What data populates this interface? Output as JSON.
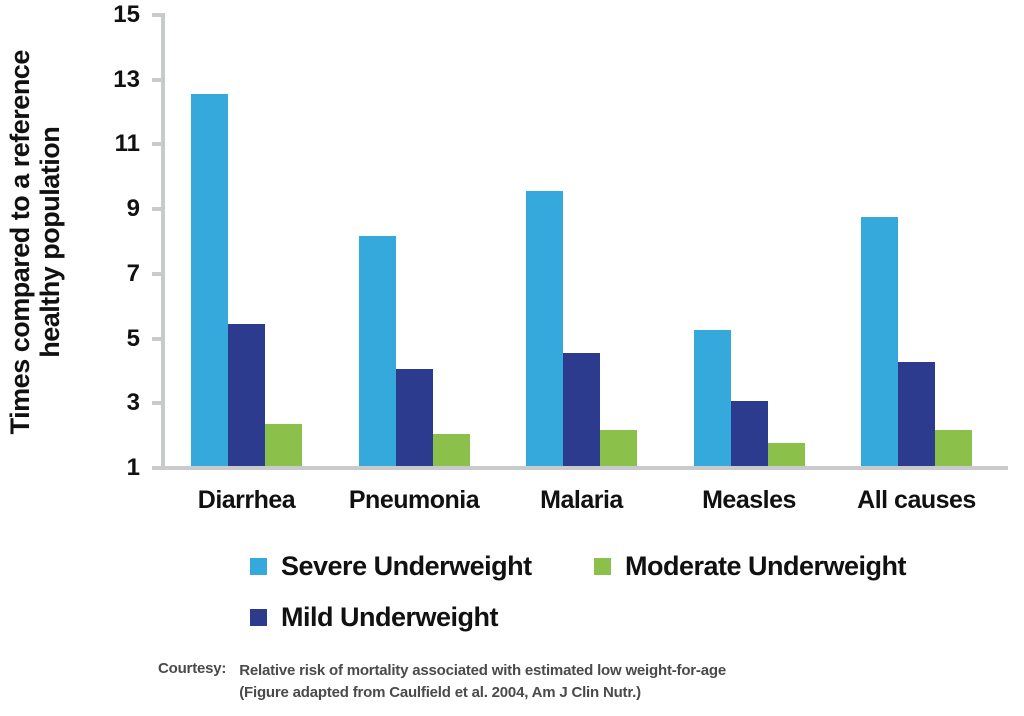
{
  "chart_data": {
    "type": "bar",
    "title": "",
    "ylabel": "Times compared to a reference\nhealthy population",
    "xlabel": "",
    "categories": [
      "Diarrhea",
      "Pneumonia",
      "Malaria",
      "Measles",
      "All causes"
    ],
    "series": [
      {
        "name": "Severe Underweight",
        "color": "#35A8DC",
        "values": [
          12.5,
          8.1,
          9.5,
          5.2,
          8.7
        ]
      },
      {
        "name": "Mild Underweight",
        "color": "#2D3B8F",
        "values": [
          5.4,
          4.0,
          4.5,
          3.0,
          4.2
        ]
      },
      {
        "name": "Moderate Underweight",
        "color": "#8BC14A",
        "values": [
          2.3,
          2.0,
          2.1,
          1.7,
          2.1
        ]
      }
    ],
    "y_ticks": [
      15,
      13,
      11,
      9,
      7,
      5,
      3,
      1
    ],
    "ylim": [
      1,
      15
    ],
    "baseline_value": 1,
    "grid": false,
    "legend_position": "bottom"
  },
  "legend": {
    "items": [
      {
        "label": "Severe Underweight",
        "color": "#35A8DC"
      },
      {
        "label": "Moderate Underweight",
        "color": "#8BC14A"
      },
      {
        "label": "Mild Underweight",
        "color": "#2D3B8F"
      }
    ]
  },
  "footer": {
    "courtesy_label": "Courtesy:",
    "line1": "Relative risk of mortality associated with estimated low weight-for-age",
    "line2": "(Figure adapted from Caulfield et al. 2004, Am J Clin Nutr.)"
  },
  "colors": {
    "axis": "#c9cacb",
    "text": "#111111",
    "footnote_text": "#4a4a4a"
  }
}
